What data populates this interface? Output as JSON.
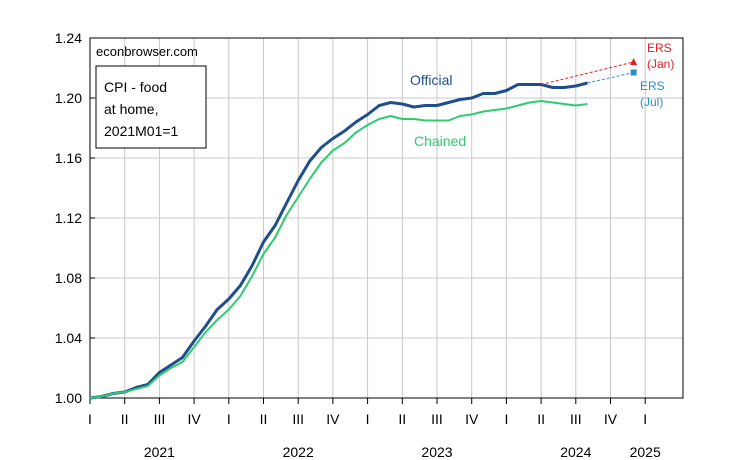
{
  "chart_data": {
    "type": "line",
    "source_label": "econbrowser.com",
    "legend_box": [
      "CPI - food",
      "at home,",
      "2021M01=1"
    ],
    "ylim": [
      1.0,
      1.24
    ],
    "yticks": [
      "1.00",
      "1.04",
      "1.08",
      "1.12",
      "1.16",
      "1.20",
      "1.24"
    ],
    "grid": true,
    "quarter_labels": [
      "I",
      "II",
      "III",
      "IV",
      "I",
      "II",
      "III",
      "IV",
      "I",
      "II",
      "III",
      "IV",
      "I",
      "II",
      "III",
      "IV",
      "I"
    ],
    "year_labels": [
      {
        "year": "2021",
        "quarter_index": 2
      },
      {
        "year": "2022",
        "quarter_index": 6
      },
      {
        "year": "2023",
        "quarter_index": 10
      },
      {
        "year": "2024",
        "quarter_index": 14
      },
      {
        "year": "2025",
        "quarter_index": 16
      }
    ],
    "x_start": "2021-01",
    "series": [
      {
        "name": "Official",
        "color": "#1f4e8c",
        "values": [
          1.0,
          1.001,
          1.003,
          1.004,
          1.007,
          1.009,
          1.017,
          1.022,
          1.027,
          1.038,
          1.048,
          1.059,
          1.066,
          1.075,
          1.088,
          1.104,
          1.115,
          1.13,
          1.145,
          1.158,
          1.167,
          1.173,
          1.178,
          1.184,
          1.189,
          1.195,
          1.197,
          1.196,
          1.194,
          1.195,
          1.195,
          1.197,
          1.199,
          1.2,
          1.203,
          1.203,
          1.205,
          1.209,
          1.209,
          1.209,
          1.207,
          1.207,
          1.208,
          1.21
        ]
      },
      {
        "name": "Chained",
        "color": "#2ecc71",
        "values": [
          1.0,
          1.001,
          1.003,
          1.004,
          1.006,
          1.008,
          1.015,
          1.02,
          1.024,
          1.034,
          1.044,
          1.052,
          1.059,
          1.068,
          1.081,
          1.096,
          1.107,
          1.122,
          1.134,
          1.146,
          1.157,
          1.165,
          1.17,
          1.177,
          1.182,
          1.186,
          1.188,
          1.186,
          1.186,
          1.185,
          1.185,
          1.185,
          1.188,
          1.189,
          1.191,
          1.192,
          1.193,
          1.195,
          1.197,
          1.198,
          1.197,
          1.196,
          1.195,
          1.196
        ]
      }
    ],
    "forecasts": [
      {
        "name": "ERS (Jan)",
        "label_lines": [
          "ERS",
          "(Jan)"
        ],
        "color": "#e02020",
        "marker": "triangle",
        "from_month_index": 39,
        "from_value": 1.209,
        "to_month_index": 47,
        "to_value": 1.224
      },
      {
        "name": "ERS (Jul)",
        "label_lines": [
          "ERS",
          "(Jul)"
        ],
        "color": "#2a8ec8",
        "marker": "square",
        "from_month_index": 43,
        "from_value": 1.21,
        "to_month_index": 47,
        "to_value": 1.217
      }
    ]
  }
}
